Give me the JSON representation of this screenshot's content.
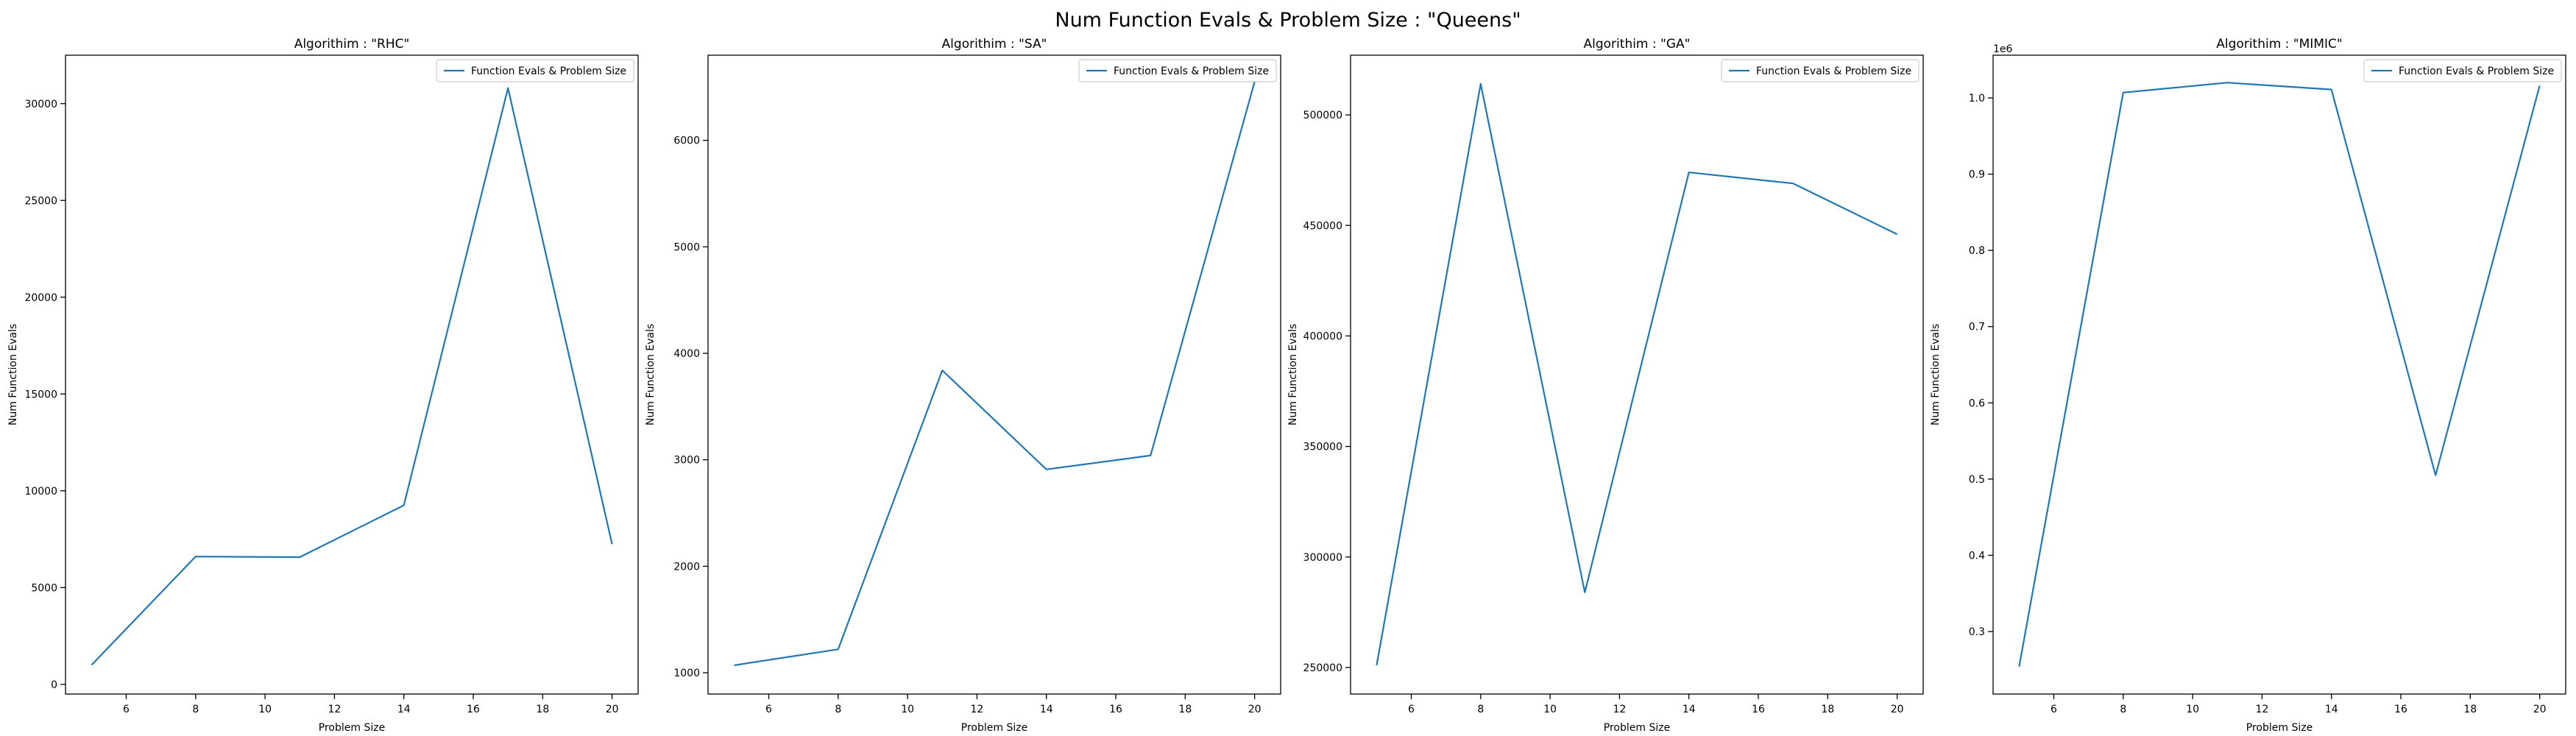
{
  "figure": {
    "suptitle": "Num Function Evals & Problem Size : \"Queens\"",
    "line_color": "#1f77b4"
  },
  "chart_data": [
    {
      "type": "line",
      "title": "Algorithim : \"RHC\"",
      "xlabel": "Problem Size",
      "ylabel": "Num Function Evals",
      "legend_placement": "top-right",
      "grid": false,
      "xlim": [
        4.25,
        20.75
      ],
      "ylim": [
        -500,
        32500
      ],
      "x_ticks": [
        6,
        8,
        10,
        12,
        14,
        16,
        18,
        20
      ],
      "y_ticks": [
        0,
        5000,
        10000,
        15000,
        20000,
        25000,
        30000
      ],
      "y_offset_label": "",
      "series": [
        {
          "name": "Function Evals & Problem Size",
          "x": [
            5,
            8,
            11,
            14,
            17,
            20
          ],
          "y": [
            1000,
            6600,
            6570,
            9250,
            30800,
            7250
          ]
        }
      ]
    },
    {
      "type": "line",
      "title": "Algorithim : \"SA\"",
      "xlabel": "Problem Size",
      "ylabel": "Num Function Evals",
      "legend_placement": "top-right",
      "grid": false,
      "xlim": [
        4.25,
        20.75
      ],
      "ylim": [
        800,
        6800
      ],
      "x_ticks": [
        6,
        8,
        10,
        12,
        14,
        16,
        18,
        20
      ],
      "y_ticks": [
        1000,
        2000,
        3000,
        4000,
        5000,
        6000
      ],
      "y_offset_label": "",
      "series": [
        {
          "name": "Function Evals & Problem Size",
          "x": [
            5,
            8,
            11,
            14,
            17,
            20
          ],
          "y": [
            1070,
            1220,
            3840,
            2910,
            3040,
            6550
          ]
        }
      ]
    },
    {
      "type": "line",
      "title": "Algorithim : \"GA\"",
      "xlabel": "Problem Size",
      "ylabel": "Num Function Evals",
      "legend_placement": "top-right",
      "grid": false,
      "xlim": [
        4.25,
        20.75
      ],
      "ylim": [
        238000,
        527000
      ],
      "x_ticks": [
        6,
        8,
        10,
        12,
        14,
        16,
        18,
        20
      ],
      "y_ticks": [
        250000,
        300000,
        350000,
        400000,
        450000,
        500000
      ],
      "y_offset_label": "",
      "series": [
        {
          "name": "Function Evals & Problem Size",
          "x": [
            5,
            8,
            11,
            14,
            17,
            20
          ],
          "y": [
            251000,
            514000,
            284000,
            474000,
            469000,
            446000
          ]
        }
      ]
    },
    {
      "type": "line",
      "title": "Algorithim : \"MIMIC\"",
      "xlabel": "Problem Size",
      "ylabel": "Num Function Evals",
      "legend_placement": "top-right",
      "grid": false,
      "xlim": [
        4.25,
        20.75
      ],
      "ylim": [
        218000,
        1056000
      ],
      "x_ticks": [
        6,
        8,
        10,
        12,
        14,
        16,
        18,
        20
      ],
      "y_ticks": [
        300000,
        400000,
        500000,
        600000,
        700000,
        800000,
        900000,
        1000000
      ],
      "y_tick_labels": [
        "0.3",
        "0.4",
        "0.5",
        "0.6",
        "0.7",
        "0.8",
        "0.9",
        "1.0"
      ],
      "y_offset_label": "1e6",
      "series": [
        {
          "name": "Function Evals & Problem Size",
          "x": [
            5,
            8,
            11,
            14,
            17,
            20
          ],
          "y": [
            254000,
            1007000,
            1020000,
            1011000,
            505000,
            1016000
          ]
        }
      ]
    }
  ]
}
